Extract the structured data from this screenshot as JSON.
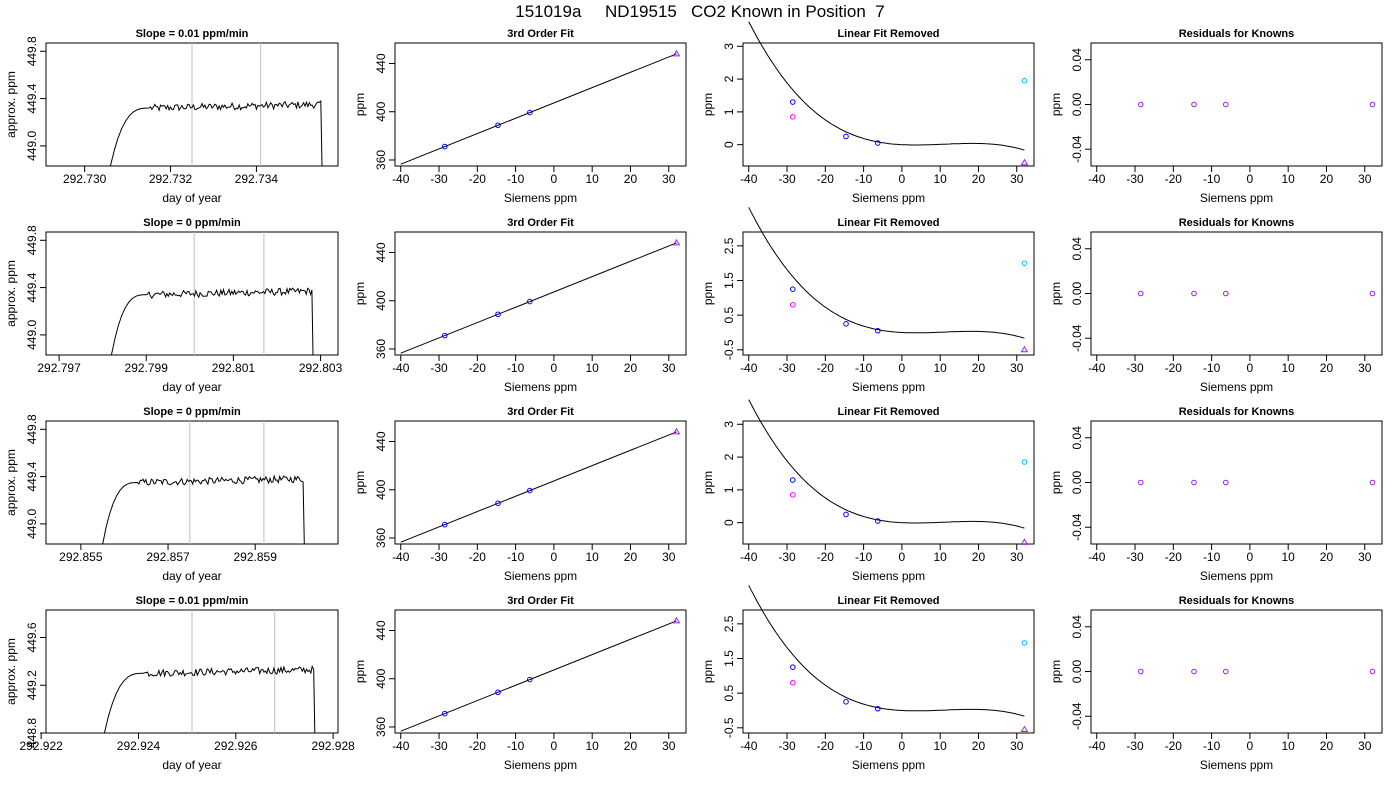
{
  "title": "151019a     ND19515   CO2 Known in Position  7",
  "colors": {
    "frame": "#000000",
    "line": "#000000",
    "vline": "#bebebe",
    "marker_blue": "#0000ff",
    "marker_magenta": "#ff00ff",
    "marker_cyan": "#00bfff",
    "marker_purple": "#a020f0"
  },
  "panels": {
    "timeseries": [
      {
        "title": "Slope =  0.01  ppm/min",
        "xlabel": "day of year",
        "ylabel": "approx. ppm",
        "xlim": [
          292.7291,
          292.7359
        ],
        "ylim": [
          448.83,
          449.87
        ],
        "xticks": [
          "292.730",
          "292.732",
          "292.734"
        ],
        "xtick_values": [
          292.73,
          292.732,
          292.734
        ],
        "yticks": [
          "449.0",
          "449.4",
          "449.8"
        ],
        "ytick_values": [
          449.0,
          449.4,
          449.8
        ],
        "vlines": [
          292.7325,
          292.7341
        ],
        "trace": {
          "start": 292.7306,
          "rise_end": 292.7315,
          "drop": 292.7355,
          "plateau": 449.32,
          "noise": 0.03,
          "end_y": 448.6
        }
      },
      {
        "title": "Slope =  0  ppm/min",
        "xlabel": "day of year",
        "ylabel": "approx. ppm",
        "xlim": [
          292.7967,
          292.8034
        ],
        "ylim": [
          448.83,
          449.87
        ],
        "xticks": [
          "292.797",
          "292.799",
          "292.801",
          "292.803"
        ],
        "xtick_values": [
          292.797,
          292.799,
          292.801,
          292.803
        ],
        "yticks": [
          "449.0",
          "449.4",
          "449.8"
        ],
        "ytick_values": [
          449.0,
          449.4,
          449.8
        ],
        "vlines": [
          292.8001,
          292.8017
        ],
        "trace": {
          "start": 292.7982,
          "rise_end": 292.799,
          "drop": 292.8028,
          "plateau": 449.34,
          "noise": 0.03,
          "end_y": 448.6
        }
      },
      {
        "title": "Slope =  0  ppm/min",
        "xlabel": "day of year",
        "ylabel": "approx. ppm",
        "xlim": [
          292.8542,
          292.8609
        ],
        "ylim": [
          448.83,
          449.87
        ],
        "xticks": [
          "292.855",
          "292.857",
          "292.859"
        ],
        "xtick_values": [
          292.855,
          292.857,
          292.859
        ],
        "yticks": [
          "449.0",
          "449.4",
          "449.8"
        ],
        "ytick_values": [
          449.0,
          449.4,
          449.8
        ],
        "vlines": [
          292.8575,
          292.8592
        ],
        "trace": {
          "start": 292.8555,
          "rise_end": 292.8563,
          "drop": 292.8601,
          "plateau": 449.35,
          "noise": 0.03,
          "end_y": 448.6
        }
      },
      {
        "title": "Slope =  0.01  ppm/min",
        "xlabel": "day of year",
        "ylabel": "approx. ppm",
        "xlim": [
          292.9221,
          292.9281
        ],
        "ylim": [
          448.8,
          449.83
        ],
        "xticks": [
          "292.922",
          "292.924",
          "292.926",
          "292.928"
        ],
        "xtick_values": [
          292.922,
          292.924,
          292.926,
          292.928
        ],
        "yticks": [
          "448.8",
          "449.2",
          "449.6"
        ],
        "ytick_values": [
          448.8,
          449.2,
          449.6
        ],
        "vlines": [
          292.9251,
          292.9268
        ],
        "trace": {
          "start": 292.9233,
          "rise_end": 292.9241,
          "drop": 292.9276,
          "plateau": 449.3,
          "noise": 0.03,
          "end_y": 448.6
        }
      }
    ],
    "fit": {
      "title": "3rd Order Fit",
      "xlabel": "Siemens ppm",
      "ylabel": "ppm",
      "xlim": [
        -41.5,
        34.5
      ],
      "ylim": [
        355,
        457
      ],
      "xticks": [
        "-40",
        "-30",
        "-20",
        "-10",
        "0",
        "10",
        "20",
        "30"
      ],
      "xtick_values": [
        -40,
        -30,
        -20,
        -10,
        0,
        10,
        20,
        30
      ],
      "yticks": [
        "360",
        "400",
        "440"
      ],
      "ytick_values": [
        360,
        400,
        440
      ],
      "line": {
        "x0": -40,
        "x1": 32,
        "slope": 1.27,
        "intercept": 407.3
      },
      "points": [
        {
          "x": -28.5,
          "y": 371.1
        },
        {
          "x": -14.6,
          "y": 388.8
        },
        {
          "x": -6.3,
          "y": 399.3
        }
      ],
      "triangle": {
        "x": 32,
        "y": 448
      }
    },
    "linear_removed": [
      {
        "title": "Linear Fit Removed",
        "xlabel": "Siemens ppm",
        "ylabel": "ppm",
        "xlim": [
          -41.5,
          34.5
        ],
        "ylim": [
          -0.65,
          3.1
        ],
        "yticks": [
          "0",
          "1",
          "2",
          "3"
        ],
        "ytick_values": [
          0,
          1,
          2,
          3
        ],
        "curve_coeffs": [
          0.0,
          -0.0059,
          0.00099,
          -3.02e-05
        ],
        "blue_points": [
          {
            "x": -28.5,
            "y": 1.3
          },
          {
            "x": -14.6,
            "y": 0.25
          },
          {
            "x": -6.3,
            "y": 0.05
          }
        ],
        "magenta_point": {
          "x": -28.5,
          "y": 0.85
        },
        "cyan_point": {
          "x": 32,
          "y": 1.95
        },
        "triangle": {
          "x": 32,
          "y": -0.55
        }
      },
      {
        "title": "Linear Fit Removed",
        "xlabel": "Siemens ppm",
        "ylabel": "ppm",
        "xlim": [
          -41.5,
          34.5
        ],
        "ylim": [
          -0.65,
          2.9
        ],
        "yticks": [
          "-0.5",
          "0.5",
          "1.5",
          "2.5"
        ],
        "ytick_values": [
          -0.5,
          0.5,
          1.5,
          2.5
        ],
        "curve_coeffs": [
          0.0,
          -0.0059,
          0.00095,
          -2.9e-05
        ],
        "blue_points": [
          {
            "x": -28.5,
            "y": 1.25
          },
          {
            "x": -14.6,
            "y": 0.25
          },
          {
            "x": -6.3,
            "y": 0.05
          }
        ],
        "magenta_point": {
          "x": -28.5,
          "y": 0.8
        },
        "cyan_point": {
          "x": 32,
          "y": 2.0
        },
        "triangle": {
          "x": 32,
          "y": -0.5
        }
      },
      {
        "title": "Linear Fit Removed",
        "xlabel": "Siemens ppm",
        "ylabel": "ppm",
        "xlim": [
          -41.5,
          34.5
        ],
        "ylim": [
          -0.65,
          3.1
        ],
        "yticks": [
          "0",
          "1",
          "2",
          "3"
        ],
        "ytick_values": [
          0,
          1,
          2,
          3
        ],
        "curve_coeffs": [
          0.0,
          -0.0059,
          0.00099,
          -3.02e-05
        ],
        "blue_points": [
          {
            "x": -28.5,
            "y": 1.3
          },
          {
            "x": -14.6,
            "y": 0.25
          },
          {
            "x": -6.3,
            "y": 0.05
          }
        ],
        "magenta_point": {
          "x": -28.5,
          "y": 0.85
        },
        "cyan_point": {
          "x": 32,
          "y": 1.85
        },
        "triangle": {
          "x": 32,
          "y": -0.6
        }
      },
      {
        "title": "Linear Fit Removed",
        "xlabel": "Siemens ppm",
        "ylabel": "ppm",
        "xlim": [
          -41.5,
          34.5
        ],
        "ylim": [
          -0.65,
          2.9
        ],
        "yticks": [
          "-0.5",
          "0.5",
          "1.5",
          "2.5"
        ],
        "ytick_values": [
          -0.5,
          0.5,
          1.5,
          2.5
        ],
        "curve_coeffs": [
          0.0,
          -0.0059,
          0.00095,
          -2.9e-05
        ],
        "blue_points": [
          {
            "x": -28.5,
            "y": 1.25
          },
          {
            "x": -14.6,
            "y": 0.25
          },
          {
            "x": -6.3,
            "y": 0.05
          }
        ],
        "magenta_point": {
          "x": -28.5,
          "y": 0.8
        },
        "cyan_point": {
          "x": 32,
          "y": 1.95
        },
        "triangle": {
          "x": 32,
          "y": -0.55
        }
      }
    ],
    "residuals": {
      "title": "Residuals for Knowns",
      "xlabel": "Siemens ppm",
      "ylabel": "ppm",
      "xlim": [
        -41.5,
        34.5
      ],
      "ylim": [
        -0.055,
        0.055
      ],
      "yticks": [
        "-0.04",
        "0.00",
        "0.04"
      ],
      "ytick_values": [
        -0.04,
        0.0,
        0.04
      ],
      "points": [
        {
          "x": -28.5,
          "y": 0
        },
        {
          "x": -14.6,
          "y": 0
        },
        {
          "x": -6.3,
          "y": 0
        },
        {
          "x": 32,
          "y": 0
        }
      ]
    }
  },
  "chart_data": {
    "type": "scatter",
    "title": "151019a     ND19515   CO2 Known in Position  7",
    "x": [
      -28.5,
      -14.6,
      -6.3,
      32
    ],
    "series": [
      {
        "name": "3rd Order Fit",
        "values": [
          371.1,
          388.8,
          399.3,
          448
        ]
      },
      {
        "name": "Linear Fit Removed",
        "values": [
          1.3,
          0.25,
          0.05,
          -0.55
        ]
      },
      {
        "name": "Residuals for Knowns",
        "values": [
          0,
          0,
          0,
          0
        ]
      }
    ],
    "xlabel": "Siemens ppm",
    "ylabel": "ppm",
    "xlim": [
      -41.5,
      34.5
    ]
  }
}
